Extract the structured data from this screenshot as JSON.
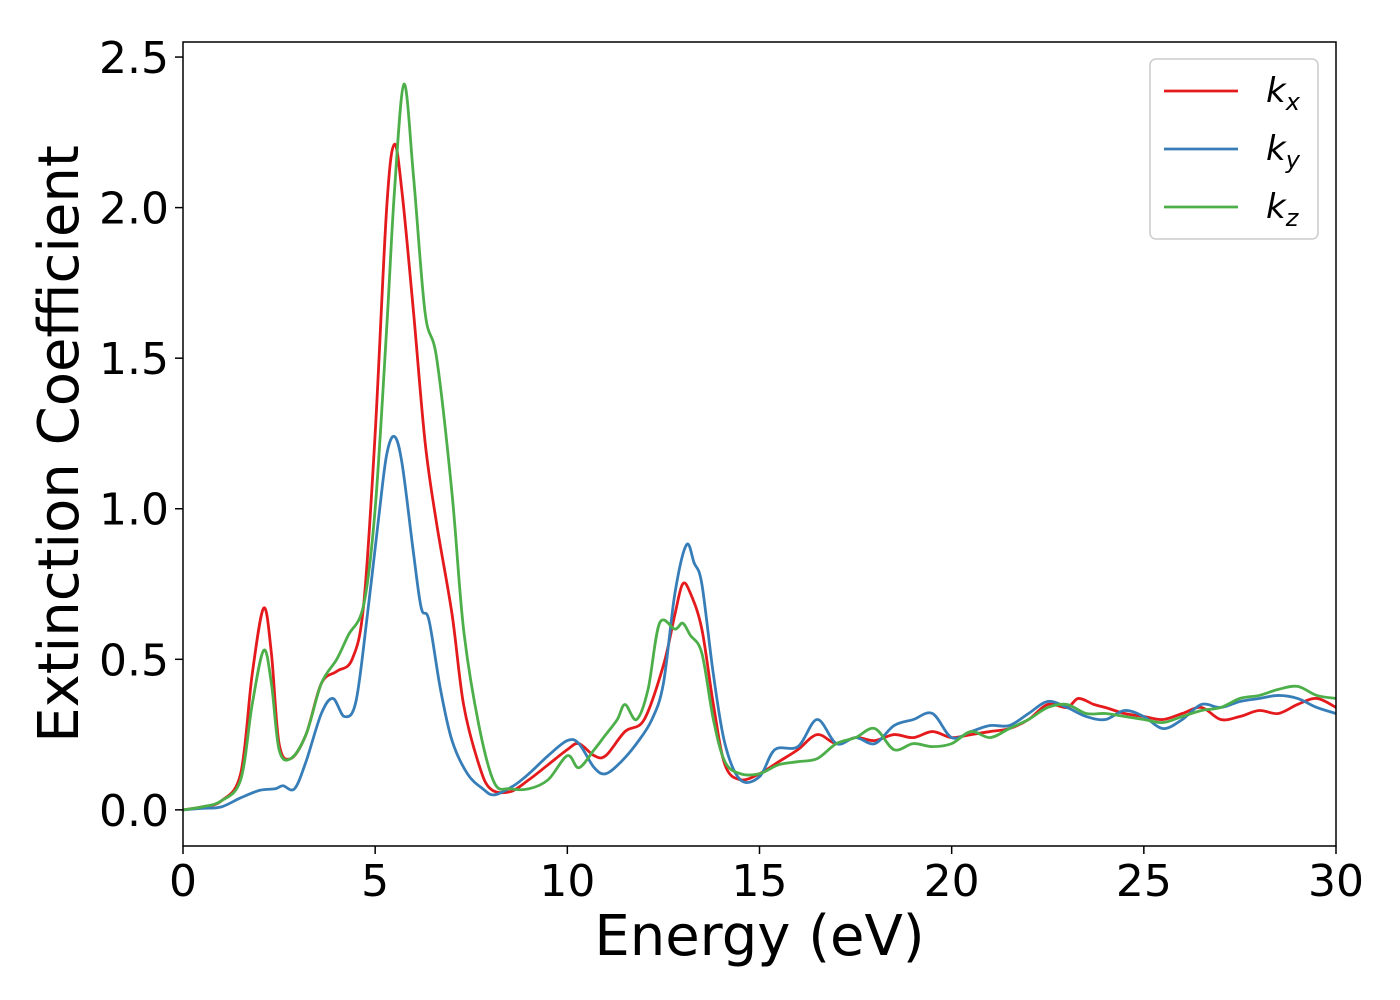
{
  "chart_data": {
    "type": "line",
    "title": "",
    "xlabel": "Energy (eV)",
    "ylabel": "Extinction Coefficient",
    "xlim": [
      0,
      30
    ],
    "ylim": [
      -0.12,
      2.55
    ],
    "xticks": [
      0,
      5,
      10,
      15,
      20,
      25,
      30
    ],
    "xtick_labels": [
      "0",
      "5",
      "10",
      "15",
      "20",
      "25",
      "30"
    ],
    "yticks": [
      0.0,
      0.5,
      1.0,
      1.5,
      2.0,
      2.5
    ],
    "ytick_labels": [
      "0.0",
      "0.5",
      "1.0",
      "1.5",
      "2.0",
      "2.5"
    ],
    "grid": false,
    "legend_position": "top-right",
    "series": [
      {
        "name": "k_x",
        "label_main": "k",
        "label_sub": "x",
        "color": "#e41a1c",
        "points": [
          [
            0,
            0
          ],
          [
            0.5,
            0.01
          ],
          [
            1.0,
            0.03
          ],
          [
            1.5,
            0.12
          ],
          [
            1.8,
            0.45
          ],
          [
            2.1,
            0.67
          ],
          [
            2.3,
            0.52
          ],
          [
            2.5,
            0.22
          ],
          [
            2.8,
            0.17
          ],
          [
            3.2,
            0.25
          ],
          [
            3.6,
            0.42
          ],
          [
            4.0,
            0.46
          ],
          [
            4.4,
            0.5
          ],
          [
            4.7,
            0.68
          ],
          [
            5.0,
            1.25
          ],
          [
            5.3,
            2.0
          ],
          [
            5.5,
            2.21
          ],
          [
            5.7,
            2.05
          ],
          [
            6.0,
            1.65
          ],
          [
            6.3,
            1.22
          ],
          [
            6.6,
            0.95
          ],
          [
            7.0,
            0.65
          ],
          [
            7.3,
            0.35
          ],
          [
            7.7,
            0.15
          ],
          [
            8.0,
            0.07
          ],
          [
            8.5,
            0.06
          ],
          [
            9.0,
            0.1
          ],
          [
            9.5,
            0.15
          ],
          [
            10.0,
            0.2
          ],
          [
            10.3,
            0.22
          ],
          [
            10.7,
            0.18
          ],
          [
            11.0,
            0.18
          ],
          [
            11.5,
            0.26
          ],
          [
            12.0,
            0.3
          ],
          [
            12.5,
            0.48
          ],
          [
            12.8,
            0.65
          ],
          [
            13.0,
            0.75
          ],
          [
            13.2,
            0.72
          ],
          [
            13.5,
            0.6
          ],
          [
            13.8,
            0.35
          ],
          [
            14.1,
            0.15
          ],
          [
            14.5,
            0.1
          ],
          [
            15.0,
            0.12
          ],
          [
            15.5,
            0.16
          ],
          [
            16.0,
            0.2
          ],
          [
            16.5,
            0.25
          ],
          [
            17.0,
            0.22
          ],
          [
            17.5,
            0.24
          ],
          [
            18.0,
            0.23
          ],
          [
            18.5,
            0.25
          ],
          [
            19.0,
            0.24
          ],
          [
            19.5,
            0.26
          ],
          [
            20.0,
            0.24
          ],
          [
            20.5,
            0.25
          ],
          [
            21.0,
            0.26
          ],
          [
            21.5,
            0.27
          ],
          [
            22.0,
            0.3
          ],
          [
            22.5,
            0.35
          ],
          [
            23.0,
            0.34
          ],
          [
            23.3,
            0.37
          ],
          [
            23.7,
            0.35
          ],
          [
            24.0,
            0.34
          ],
          [
            24.5,
            0.32
          ],
          [
            25.0,
            0.31
          ],
          [
            25.5,
            0.3
          ],
          [
            26.0,
            0.32
          ],
          [
            26.5,
            0.34
          ],
          [
            27.0,
            0.3
          ],
          [
            27.5,
            0.31
          ],
          [
            28.0,
            0.33
          ],
          [
            28.5,
            0.32
          ],
          [
            29.0,
            0.35
          ],
          [
            29.5,
            0.37
          ],
          [
            30.0,
            0.34
          ]
        ]
      },
      {
        "name": "k_y",
        "label_main": "k",
        "label_sub": "y",
        "color": "#377eb8",
        "points": [
          [
            0,
            0
          ],
          [
            0.5,
            0.005
          ],
          [
            1.0,
            0.01
          ],
          [
            1.5,
            0.04
          ],
          [
            2.0,
            0.065
          ],
          [
            2.4,
            0.07
          ],
          [
            2.6,
            0.08
          ],
          [
            2.9,
            0.07
          ],
          [
            3.2,
            0.16
          ],
          [
            3.6,
            0.32
          ],
          [
            3.9,
            0.37
          ],
          [
            4.2,
            0.31
          ],
          [
            4.5,
            0.36
          ],
          [
            4.8,
            0.65
          ],
          [
            5.1,
            0.98
          ],
          [
            5.3,
            1.18
          ],
          [
            5.5,
            1.24
          ],
          [
            5.7,
            1.15
          ],
          [
            6.0,
            0.85
          ],
          [
            6.2,
            0.67
          ],
          [
            6.4,
            0.63
          ],
          [
            6.7,
            0.4
          ],
          [
            7.0,
            0.23
          ],
          [
            7.4,
            0.12
          ],
          [
            7.8,
            0.07
          ],
          [
            8.1,
            0.05
          ],
          [
            8.6,
            0.08
          ],
          [
            9.0,
            0.12
          ],
          [
            9.5,
            0.18
          ],
          [
            10.0,
            0.23
          ],
          [
            10.3,
            0.22
          ],
          [
            10.7,
            0.14
          ],
          [
            11.0,
            0.12
          ],
          [
            11.4,
            0.16
          ],
          [
            11.8,
            0.22
          ],
          [
            12.2,
            0.3
          ],
          [
            12.5,
            0.42
          ],
          [
            12.8,
            0.72
          ],
          [
            13.1,
            0.88
          ],
          [
            13.3,
            0.82
          ],
          [
            13.5,
            0.75
          ],
          [
            13.8,
            0.45
          ],
          [
            14.1,
            0.22
          ],
          [
            14.5,
            0.1
          ],
          [
            15.0,
            0.11
          ],
          [
            15.4,
            0.2
          ],
          [
            16.0,
            0.21
          ],
          [
            16.5,
            0.3
          ],
          [
            17.0,
            0.22
          ],
          [
            17.5,
            0.24
          ],
          [
            18.0,
            0.22
          ],
          [
            18.5,
            0.28
          ],
          [
            19.0,
            0.3
          ],
          [
            19.5,
            0.32
          ],
          [
            20.0,
            0.24
          ],
          [
            20.5,
            0.26
          ],
          [
            21.0,
            0.28
          ],
          [
            21.5,
            0.28
          ],
          [
            22.0,
            0.32
          ],
          [
            22.5,
            0.36
          ],
          [
            23.0,
            0.34
          ],
          [
            23.5,
            0.31
          ],
          [
            24.0,
            0.3
          ],
          [
            24.5,
            0.33
          ],
          [
            25.0,
            0.31
          ],
          [
            25.5,
            0.27
          ],
          [
            26.0,
            0.3
          ],
          [
            26.5,
            0.35
          ],
          [
            27.0,
            0.34
          ],
          [
            27.5,
            0.36
          ],
          [
            28.0,
            0.37
          ],
          [
            28.5,
            0.38
          ],
          [
            29.0,
            0.37
          ],
          [
            29.5,
            0.34
          ],
          [
            30.0,
            0.32
          ]
        ]
      },
      {
        "name": "k_z",
        "label_main": "k",
        "label_sub": "z",
        "color": "#4daf4a",
        "points": [
          [
            0,
            0
          ],
          [
            0.5,
            0.01
          ],
          [
            1.0,
            0.03
          ],
          [
            1.5,
            0.1
          ],
          [
            1.8,
            0.35
          ],
          [
            2.1,
            0.53
          ],
          [
            2.3,
            0.42
          ],
          [
            2.5,
            0.2
          ],
          [
            2.8,
            0.17
          ],
          [
            3.2,
            0.25
          ],
          [
            3.6,
            0.42
          ],
          [
            4.0,
            0.5
          ],
          [
            4.3,
            0.58
          ],
          [
            4.7,
            0.68
          ],
          [
            5.0,
            1.0
          ],
          [
            5.3,
            1.6
          ],
          [
            5.5,
            2.05
          ],
          [
            5.75,
            2.41
          ],
          [
            6.0,
            2.1
          ],
          [
            6.3,
            1.65
          ],
          [
            6.6,
            1.5
          ],
          [
            7.0,
            1.05
          ],
          [
            7.3,
            0.6
          ],
          [
            7.7,
            0.28
          ],
          [
            8.1,
            0.09
          ],
          [
            8.5,
            0.07
          ],
          [
            9.0,
            0.07
          ],
          [
            9.5,
            0.1
          ],
          [
            10.0,
            0.18
          ],
          [
            10.3,
            0.14
          ],
          [
            10.7,
            0.2
          ],
          [
            11.0,
            0.25
          ],
          [
            11.3,
            0.3
          ],
          [
            11.5,
            0.35
          ],
          [
            11.8,
            0.3
          ],
          [
            12.1,
            0.4
          ],
          [
            12.4,
            0.62
          ],
          [
            12.8,
            0.6
          ],
          [
            13.0,
            0.62
          ],
          [
            13.2,
            0.58
          ],
          [
            13.5,
            0.52
          ],
          [
            13.8,
            0.3
          ],
          [
            14.1,
            0.16
          ],
          [
            14.5,
            0.12
          ],
          [
            15.0,
            0.12
          ],
          [
            15.5,
            0.15
          ],
          [
            16.0,
            0.16
          ],
          [
            16.5,
            0.17
          ],
          [
            17.0,
            0.22
          ],
          [
            17.5,
            0.24
          ],
          [
            18.0,
            0.27
          ],
          [
            18.5,
            0.2
          ],
          [
            19.0,
            0.22
          ],
          [
            19.5,
            0.21
          ],
          [
            20.0,
            0.22
          ],
          [
            20.5,
            0.26
          ],
          [
            21.0,
            0.24
          ],
          [
            21.5,
            0.27
          ],
          [
            22.0,
            0.3
          ],
          [
            22.5,
            0.34
          ],
          [
            23.0,
            0.35
          ],
          [
            23.5,
            0.32
          ],
          [
            24.0,
            0.32
          ],
          [
            24.5,
            0.31
          ],
          [
            25.0,
            0.3
          ],
          [
            25.5,
            0.29
          ],
          [
            26.0,
            0.31
          ],
          [
            26.5,
            0.33
          ],
          [
            27.0,
            0.34
          ],
          [
            27.5,
            0.37
          ],
          [
            28.0,
            0.38
          ],
          [
            28.5,
            0.4
          ],
          [
            29.0,
            0.41
          ],
          [
            29.5,
            0.38
          ],
          [
            30.0,
            0.37
          ]
        ]
      }
    ]
  }
}
